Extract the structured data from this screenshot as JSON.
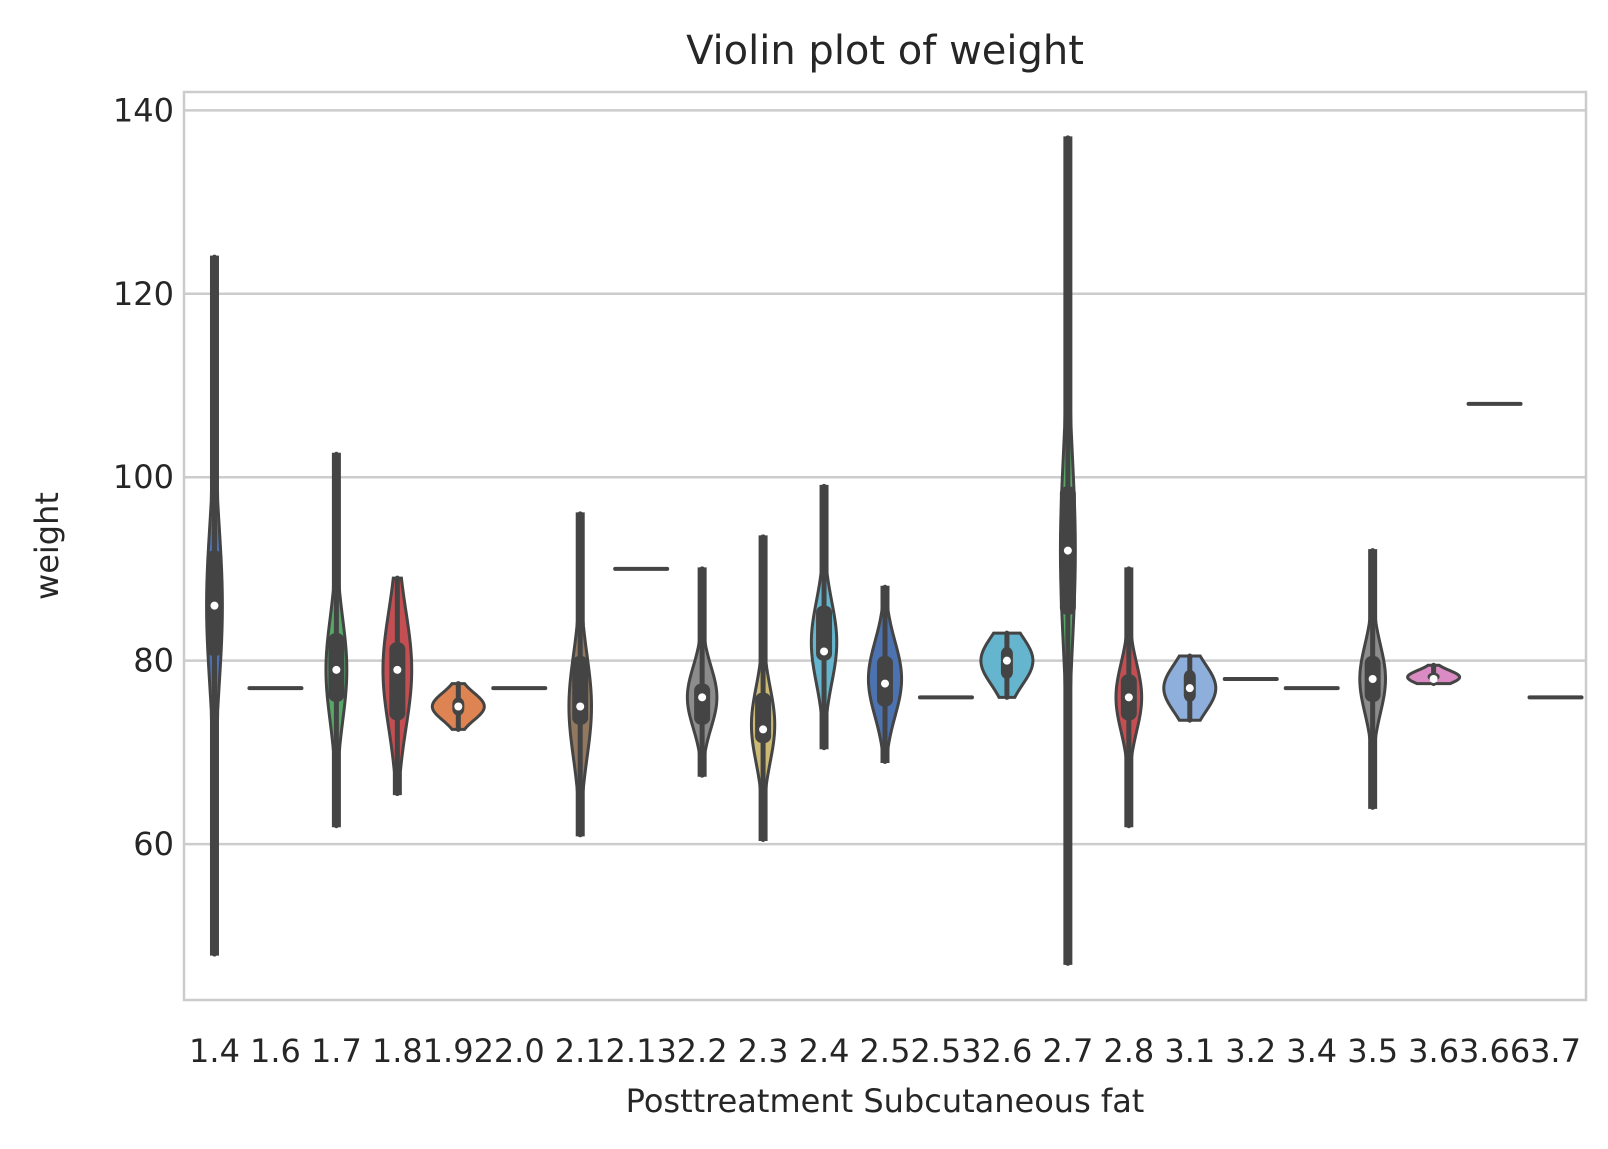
{
  "chart_data": {
    "type": "violin",
    "title": "Violin plot of weight",
    "xlabel": "Posttreatment Subcutaneous fat",
    "ylabel": "weight",
    "ylim": [
      43,
      142
    ],
    "yticks": [
      60,
      80,
      100,
      120,
      140
    ],
    "grid": true,
    "legend": "none",
    "categories": [
      "1.4",
      "1.6",
      "1.7",
      "1.8",
      "1.92",
      "2.0",
      "2.1",
      "2.13",
      "2.2",
      "2.3",
      "2.4",
      "2.5",
      "2.53",
      "2.6",
      "2.7",
      "2.8",
      "3.1",
      "3.2",
      "3.4",
      "3.5",
      "3.6",
      "3.66",
      "3.7"
    ],
    "violins": [
      {
        "min": 48,
        "max": 124,
        "q1": 80.5,
        "median": 86,
        "q3": 92,
        "max_density_y": 86,
        "color": "#4c72b0"
      },
      {
        "min": 77,
        "max": 77,
        "q1": 77,
        "median": 77,
        "q3": 77,
        "color": "#dd8452"
      },
      {
        "min": 62,
        "max": 102.5,
        "q1": 75.5,
        "median": 79,
        "q3": 83,
        "max_density_y": 79,
        "color": "#55a868"
      },
      {
        "min": 65.5,
        "max": 89,
        "q1": 73.5,
        "median": 79,
        "q3": 82,
        "max_density_y": 79,
        "color": "#c44e52"
      },
      {
        "min": 72.5,
        "max": 77.5,
        "q1": 74,
        "median": 75,
        "q3": 76,
        "max_density_y": 75,
        "color": "#dd8452"
      },
      {
        "min": 77,
        "max": 77,
        "q1": 77,
        "median": 77,
        "q3": 77,
        "color": "#8172b3"
      },
      {
        "min": 61,
        "max": 96,
        "q1": 73,
        "median": 75,
        "q3": 80.5,
        "max_density_y": 75,
        "color": "#937860"
      },
      {
        "min": 90,
        "max": 90,
        "q1": 90,
        "median": 90,
        "q3": 90,
        "color": "#da8bc3"
      },
      {
        "min": 67.5,
        "max": 90,
        "q1": 73,
        "median": 76,
        "q3": 77.5,
        "max_density_y": 76,
        "color": "#8c8c8c"
      },
      {
        "min": 60.5,
        "max": 93.5,
        "q1": 71,
        "median": 72.5,
        "q3": 76.5,
        "max_density_y": 73,
        "color": "#ccb974"
      },
      {
        "min": 70.5,
        "max": 99,
        "q1": 80,
        "median": 81,
        "q3": 86,
        "max_density_y": 82,
        "color": "#64b5cd"
      },
      {
        "min": 69,
        "max": 88,
        "q1": 75,
        "median": 77.5,
        "q3": 80.5,
        "max_density_y": 78,
        "color": "#4c72b0"
      },
      {
        "min": 76,
        "max": 76,
        "q1": 76,
        "median": 76,
        "q3": 76,
        "color": "#dd8452"
      },
      {
        "min": 76,
        "max": 83,
        "q1": 78,
        "median": 80,
        "q3": 81.5,
        "max_density_y": 80,
        "color": "#64b5cd"
      },
      {
        "min": 47,
        "max": 137,
        "q1": 85,
        "median": 92,
        "q3": 99,
        "max_density_y": 92,
        "color": "#55a868"
      },
      {
        "min": 62,
        "max": 90,
        "q1": 73.5,
        "median": 76,
        "q3": 78.5,
        "max_density_y": 76,
        "color": "#c44e52"
      },
      {
        "min": 73.5,
        "max": 80.5,
        "q1": 75.5,
        "median": 77,
        "q3": 79,
        "max_density_y": 77,
        "color": "#8eaedb"
      },
      {
        "min": 78,
        "max": 78,
        "q1": 78,
        "median": 78,
        "q3": 78,
        "color": "#8172b3"
      },
      {
        "min": 77,
        "max": 77,
        "q1": 77,
        "median": 77,
        "q3": 77,
        "color": "#937860"
      },
      {
        "min": 64,
        "max": 92,
        "q1": 75.5,
        "median": 78,
        "q3": 80.5,
        "max_density_y": 78,
        "color": "#8c8c8c"
      },
      {
        "min": 77.5,
        "max": 79.5,
        "q1": 77.8,
        "median": 78,
        "q3": 78.7,
        "max_density_y": 78.2,
        "color": "#da8bc3"
      },
      {
        "min": 108,
        "max": 108,
        "q1": 108,
        "median": 108,
        "q3": 108,
        "color": "#8c8c8c"
      },
      {
        "min": 76,
        "max": 76,
        "q1": 76,
        "median": 76,
        "q3": 76,
        "color": "#ccb974"
      }
    ]
  }
}
